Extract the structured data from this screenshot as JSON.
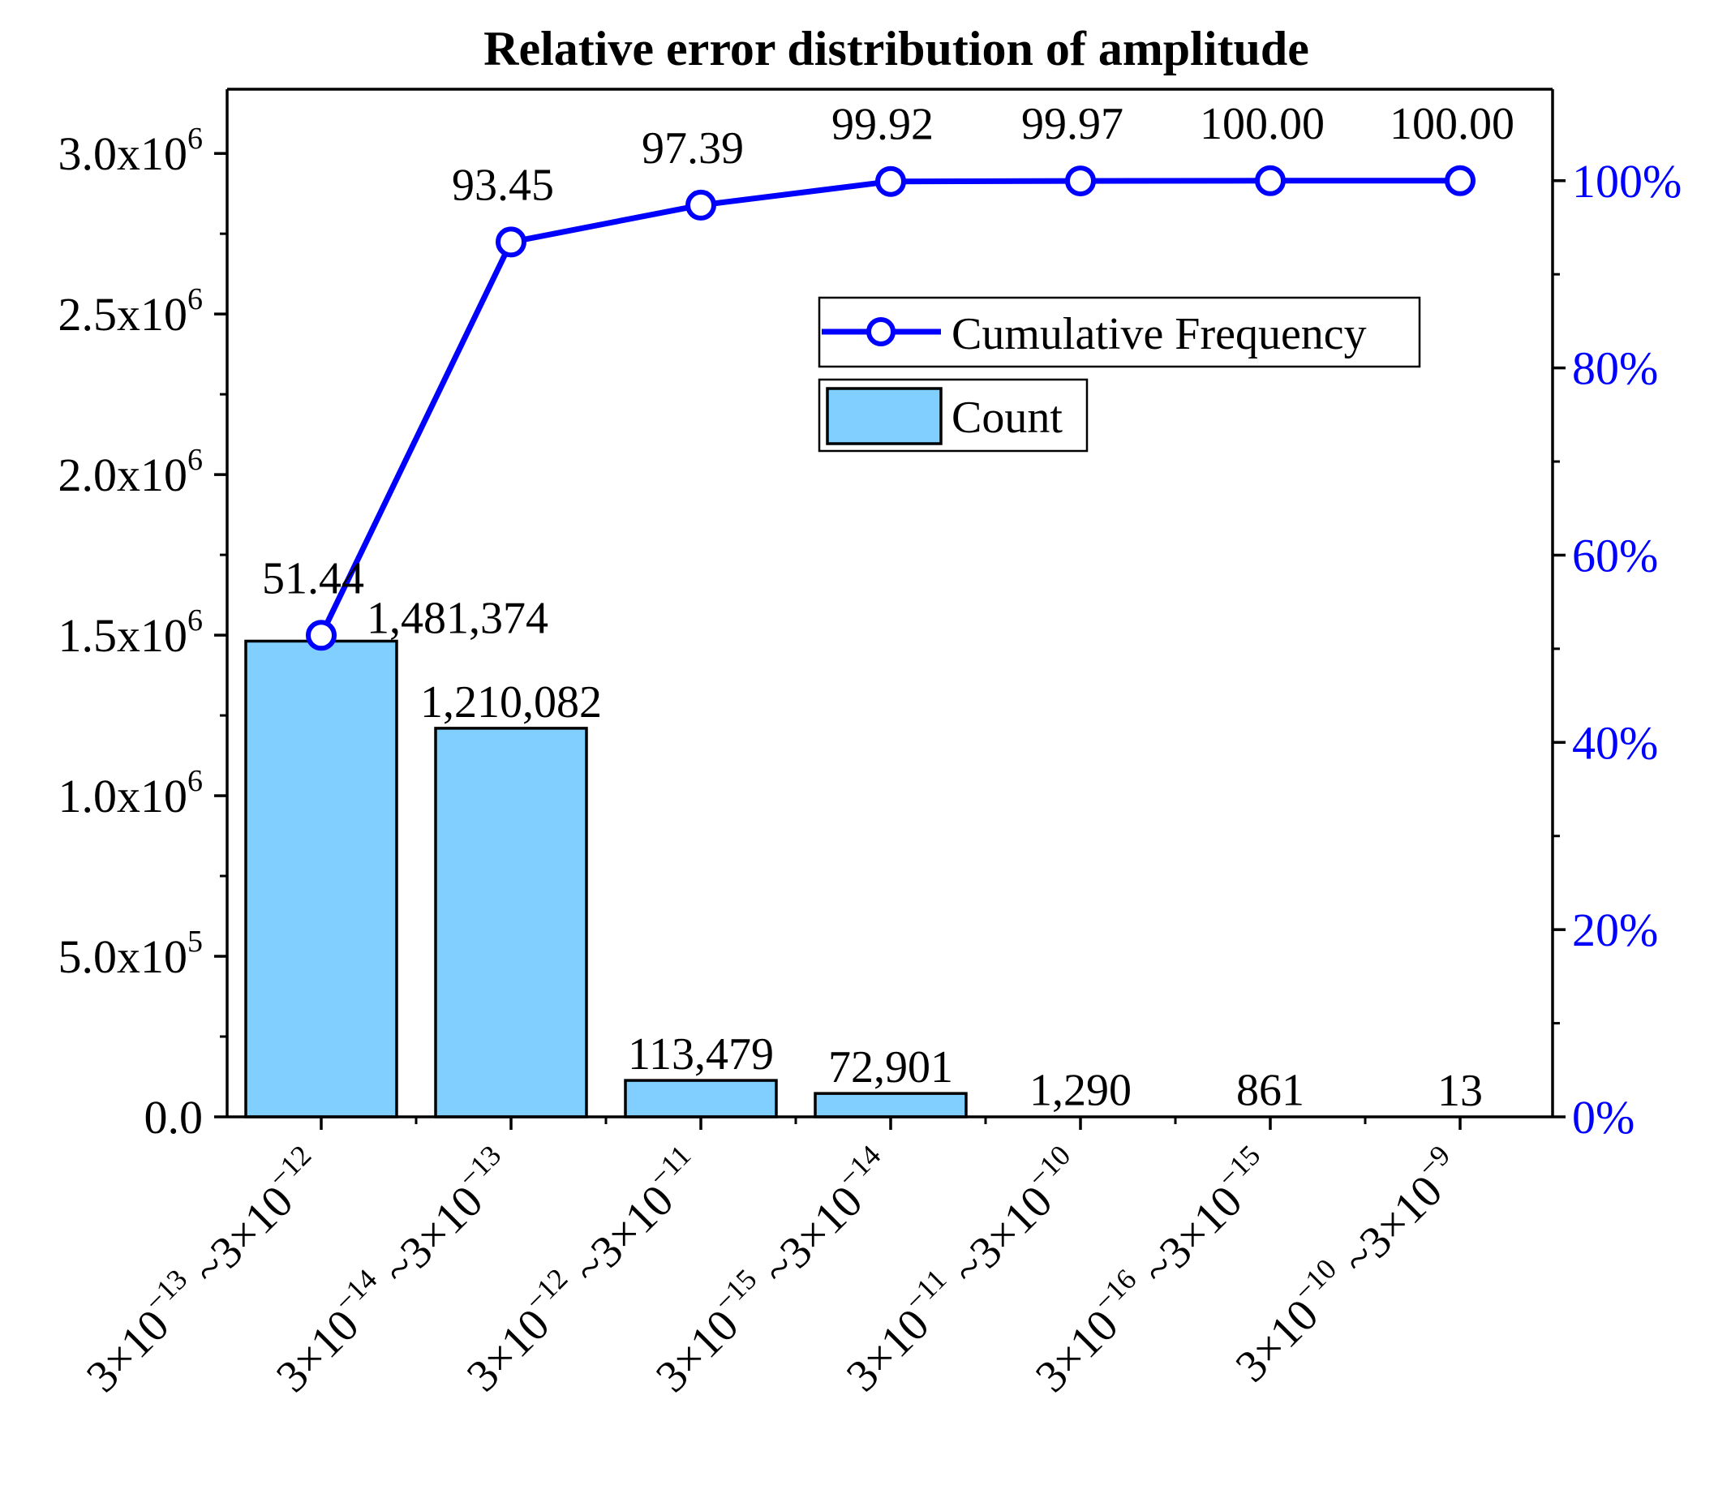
{
  "chart_data": {
    "type": "bar",
    "title": "Relative error distribution of amplitude",
    "xlabel": "",
    "ylabel": "",
    "categories": [
      {
        "lo_mant": "3",
        "lo_exp": "−13",
        "hi_mant": "3",
        "hi_exp": "−12"
      },
      {
        "lo_mant": "3",
        "lo_exp": "−14",
        "hi_mant": "3",
        "hi_exp": "−13"
      },
      {
        "lo_mant": "3",
        "lo_exp": "−12",
        "hi_mant": "3",
        "hi_exp": "−11"
      },
      {
        "lo_mant": "3",
        "lo_exp": "−15",
        "hi_mant": "3",
        "hi_exp": "−14"
      },
      {
        "lo_mant": "3",
        "lo_exp": "−11",
        "hi_mant": "3",
        "hi_exp": "−10"
      },
      {
        "lo_mant": "3",
        "lo_exp": "−16",
        "hi_mant": "3",
        "hi_exp": "−15"
      },
      {
        "lo_mant": "3",
        "lo_exp": "−10",
        "hi_mant": "3",
        "hi_exp": "−9"
      }
    ],
    "series": [
      {
        "name": "Count",
        "type": "bar",
        "axis": "left",
        "color": "#80CFFF",
        "values": [
          1481374,
          1210082,
          113479,
          72901,
          1290,
          861,
          13
        ],
        "labels": [
          "1,481,374",
          "1,210,082",
          "113,479",
          "72,901",
          "1,290",
          "861",
          "13"
        ]
      },
      {
        "name": "Cumulative Frequency",
        "type": "line",
        "axis": "right",
        "color": "#0000FF",
        "values": [
          51.44,
          93.45,
          97.39,
          99.92,
          99.97,
          100.0,
          100.0
        ],
        "labels": [
          "51.44",
          "93.45",
          "97.39",
          "99.92",
          "99.97",
          "100.00",
          "100.00"
        ]
      }
    ],
    "y_left": {
      "ylim": [
        0,
        3200000
      ],
      "ticks": [
        {
          "value": 0,
          "mant": "0.0",
          "exp": ""
        },
        {
          "value": 500000,
          "mant": "5.0x10",
          "exp": "5"
        },
        {
          "value": 1000000,
          "mant": "1.0x10",
          "exp": "6"
        },
        {
          "value": 1500000,
          "mant": "1.5x10",
          "exp": "6"
        },
        {
          "value": 2000000,
          "mant": "2.0x10",
          "exp": "6"
        },
        {
          "value": 2500000,
          "mant": "2.5x10",
          "exp": "6"
        },
        {
          "value": 3000000,
          "mant": "3.0x10",
          "exp": "6"
        }
      ]
    },
    "y_right": {
      "ylim": [
        0,
        109.77
      ],
      "color": "#0000FF",
      "ticks": [
        {
          "value": 0,
          "label": "0%"
        },
        {
          "value": 20,
          "label": "20%"
        },
        {
          "value": 40,
          "label": "40%"
        },
        {
          "value": 60,
          "label": "60%"
        },
        {
          "value": 80,
          "label": "80%"
        },
        {
          "value": 100,
          "label": "100%"
        }
      ]
    },
    "legend": {
      "placement": "upper-center",
      "entries": [
        "Cumulative Frequency",
        "Count"
      ]
    },
    "grid": false
  }
}
